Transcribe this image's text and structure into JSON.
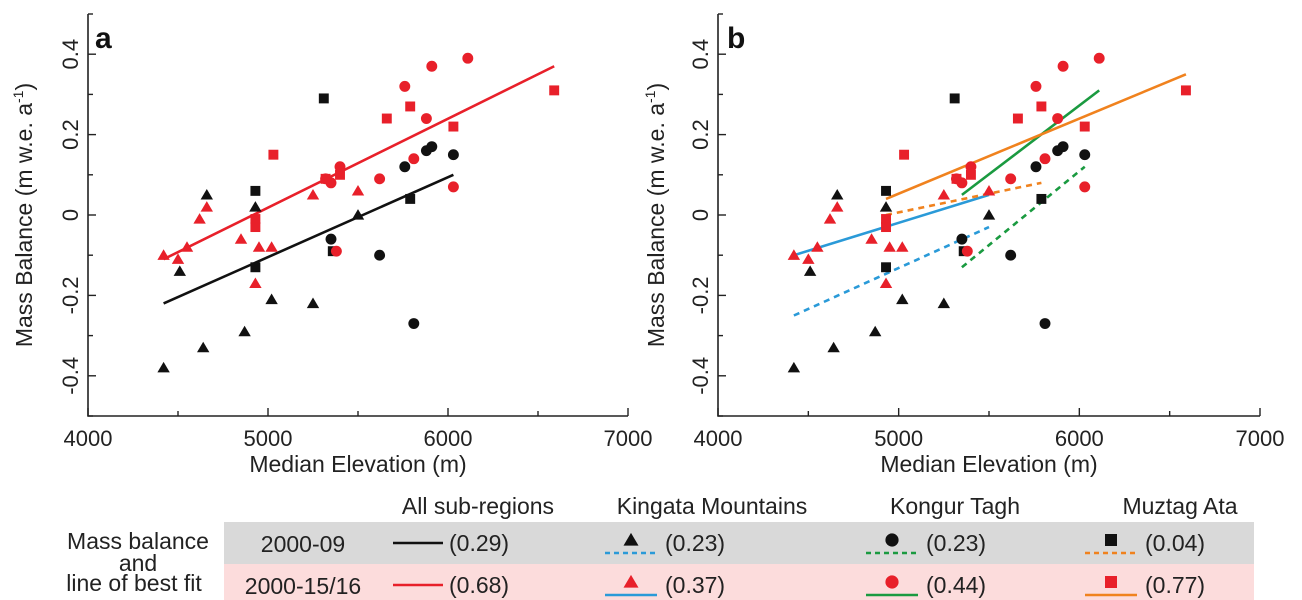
{
  "chart_data": [
    {
      "panel_label": "a",
      "type": "scatter",
      "xlabel": "Median Elevation (m)",
      "ylabel": "Mass Balance (m w.e. a",
      "ylabel_sup": "-1",
      "ylabel_close": ")",
      "xlim": [
        4000,
        7000
      ],
      "ylim": [
        -0.5,
        0.5
      ],
      "xticks": [
        4000,
        5000,
        6000,
        7000
      ],
      "yticks": [
        -0.4,
        -0.2,
        0,
        0.2,
        0.4
      ],
      "yticklabels": [
        "-0.4",
        "-0.2",
        "0",
        "0.2",
        "0.4"
      ],
      "series": [
        {
          "region": "Kingata Mountains",
          "period": "2000-09",
          "marker": "triangle",
          "color": "#111111",
          "points": [
            [
              4420,
              -0.38
            ],
            [
              4510,
              -0.14
            ],
            [
              4640,
              -0.33
            ],
            [
              4660,
              0.05
            ],
            [
              4870,
              -0.29
            ],
            [
              4930,
              0.02
            ],
            [
              5020,
              -0.21
            ],
            [
              5250,
              -0.22
            ],
            [
              5500,
              0.0
            ]
          ]
        },
        {
          "region": "Kongur Tagh",
          "period": "2000-09",
          "marker": "circle",
          "color": "#111111",
          "points": [
            [
              5350,
              -0.06
            ],
            [
              5620,
              -0.1
            ],
            [
              5760,
              0.12
            ],
            [
              5810,
              -0.27
            ],
            [
              5880,
              0.16
            ],
            [
              5910,
              0.17
            ],
            [
              6030,
              0.15
            ]
          ]
        },
        {
          "region": "Muztag Ata",
          "period": "2000-09",
          "marker": "square",
          "color": "#111111",
          "points": [
            [
              4930,
              0.06
            ],
            [
              4930,
              -0.13
            ],
            [
              5310,
              0.29
            ],
            [
              5360,
              -0.09
            ],
            [
              5790,
              0.04
            ]
          ]
        },
        {
          "region": "Kingata Mountains",
          "period": "2000-15/16",
          "marker": "triangle",
          "color": "#e8202a",
          "points": [
            [
              4420,
              -0.1
            ],
            [
              4500,
              -0.11
            ],
            [
              4550,
              -0.08
            ],
            [
              4620,
              -0.01
            ],
            [
              4660,
              0.02
            ],
            [
              4850,
              -0.06
            ],
            [
              4930,
              -0.17
            ],
            [
              4950,
              -0.08
            ],
            [
              5020,
              -0.08
            ],
            [
              5250,
              0.05
            ],
            [
              5500,
              0.06
            ]
          ]
        },
        {
          "region": "Kongur Tagh",
          "period": "2000-15/16",
          "marker": "circle",
          "color": "#e8202a",
          "points": [
            [
              5320,
              0.09
            ],
            [
              5350,
              0.08
            ],
            [
              5380,
              -0.09
            ],
            [
              5400,
              0.12
            ],
            [
              5620,
              0.09
            ],
            [
              5760,
              0.32
            ],
            [
              5810,
              0.14
            ],
            [
              5880,
              0.24
            ],
            [
              5910,
              0.37
            ],
            [
              6030,
              0.07
            ],
            [
              6110,
              0.39
            ]
          ]
        },
        {
          "region": "Muztag Ata",
          "period": "2000-15/16",
          "marker": "square",
          "color": "#e8202a",
          "points": [
            [
              4930,
              -0.01
            ],
            [
              4930,
              -0.03
            ],
            [
              5030,
              0.15
            ],
            [
              5320,
              0.09
            ],
            [
              5400,
              0.1
            ],
            [
              5660,
              0.24
            ],
            [
              5790,
              0.27
            ],
            [
              6030,
              0.22
            ],
            [
              6590,
              0.31
            ]
          ]
        }
      ],
      "fit_lines": [
        {
          "name": "All sub-regions 2000-09",
          "color": "#111111",
          "dash": false,
          "x": [
            4420,
            6030
          ],
          "y": [
            -0.22,
            0.1
          ]
        },
        {
          "name": "All sub-regions 2000-15/16",
          "color": "#e8202a",
          "dash": false,
          "x": [
            4420,
            6590
          ],
          "y": [
            -0.11,
            0.37
          ]
        }
      ]
    },
    {
      "panel_label": "b",
      "type": "scatter",
      "xlabel": "Median Elevation (m)",
      "ylabel": "Mass Balance (m w.e. a",
      "ylabel_sup": "-1",
      "ylabel_close": ")",
      "xlim": [
        4000,
        7000
      ],
      "ylim": [
        -0.5,
        0.5
      ],
      "xticks": [
        4000,
        5000,
        6000,
        7000
      ],
      "yticks": [
        -0.4,
        -0.2,
        0,
        0.2,
        0.4
      ],
      "yticklabels": [
        "-0.4",
        "-0.2",
        "0",
        "0.2",
        "0.4"
      ],
      "series": [
        {
          "region": "Kingata Mountains",
          "period": "2000-09",
          "marker": "triangle",
          "color": "#111111",
          "points": [
            [
              4420,
              -0.38
            ],
            [
              4510,
              -0.14
            ],
            [
              4640,
              -0.33
            ],
            [
              4660,
              0.05
            ],
            [
              4870,
              -0.29
            ],
            [
              4930,
              0.02
            ],
            [
              5020,
              -0.21
            ],
            [
              5250,
              -0.22
            ],
            [
              5500,
              0.0
            ]
          ]
        },
        {
          "region": "Kongur Tagh",
          "period": "2000-09",
          "marker": "circle",
          "color": "#111111",
          "points": [
            [
              5350,
              -0.06
            ],
            [
              5620,
              -0.1
            ],
            [
              5760,
              0.12
            ],
            [
              5810,
              -0.27
            ],
            [
              5880,
              0.16
            ],
            [
              5910,
              0.17
            ],
            [
              6030,
              0.15
            ]
          ]
        },
        {
          "region": "Muztag Ata",
          "period": "2000-09",
          "marker": "square",
          "color": "#111111",
          "points": [
            [
              4930,
              0.06
            ],
            [
              4930,
              -0.13
            ],
            [
              5310,
              0.29
            ],
            [
              5360,
              -0.09
            ],
            [
              5790,
              0.04
            ]
          ]
        },
        {
          "region": "Kingata Mountains",
          "period": "2000-15/16",
          "marker": "triangle",
          "color": "#e8202a",
          "points": [
            [
              4420,
              -0.1
            ],
            [
              4500,
              -0.11
            ],
            [
              4550,
              -0.08
            ],
            [
              4620,
              -0.01
            ],
            [
              4660,
              0.02
            ],
            [
              4850,
              -0.06
            ],
            [
              4930,
              -0.17
            ],
            [
              4950,
              -0.08
            ],
            [
              5020,
              -0.08
            ],
            [
              5250,
              0.05
            ],
            [
              5500,
              0.06
            ]
          ]
        },
        {
          "region": "Kongur Tagh",
          "period": "2000-15/16",
          "marker": "circle",
          "color": "#e8202a",
          "points": [
            [
              5320,
              0.09
            ],
            [
              5350,
              0.08
            ],
            [
              5380,
              -0.09
            ],
            [
              5400,
              0.12
            ],
            [
              5620,
              0.09
            ],
            [
              5760,
              0.32
            ],
            [
              5810,
              0.14
            ],
            [
              5880,
              0.24
            ],
            [
              5910,
              0.37
            ],
            [
              6030,
              0.07
            ],
            [
              6110,
              0.39
            ]
          ]
        },
        {
          "region": "Muztag Ata",
          "period": "2000-15/16",
          "marker": "square",
          "color": "#e8202a",
          "points": [
            [
              4930,
              -0.01
            ],
            [
              4930,
              -0.03
            ],
            [
              5030,
              0.15
            ],
            [
              5320,
              0.09
            ],
            [
              5400,
              0.1
            ],
            [
              5660,
              0.24
            ],
            [
              5790,
              0.27
            ],
            [
              6030,
              0.22
            ],
            [
              6590,
              0.31
            ]
          ]
        }
      ],
      "fit_lines": [
        {
          "name": "Kingata Mountains 2000-09",
          "color": "#2a9ad8",
          "dash": true,
          "x": [
            4420,
            5500
          ],
          "y": [
            -0.25,
            -0.03
          ]
        },
        {
          "name": "Kingata Mountains 2000-15/16",
          "color": "#2a9ad8",
          "dash": false,
          "x": [
            4420,
            5500
          ],
          "y": [
            -0.1,
            0.05
          ]
        },
        {
          "name": "Kongur Tagh 2000-09",
          "color": "#1a9a40",
          "dash": true,
          "x": [
            5350,
            6030
          ],
          "y": [
            -0.13,
            0.12
          ]
        },
        {
          "name": "Kongur Tagh 2000-15/16",
          "color": "#1a9a40",
          "dash": false,
          "x": [
            5350,
            6110
          ],
          "y": [
            0.05,
            0.31
          ]
        },
        {
          "name": "Muztag Ata 2000-09",
          "color": "#f0821e",
          "dash": true,
          "x": [
            4930,
            5790
          ],
          "y": [
            0.0,
            0.08
          ]
        },
        {
          "name": "Muztag Ata 2000-15/16",
          "color": "#f0821e",
          "dash": false,
          "x": [
            4930,
            6590
          ],
          "y": [
            0.04,
            0.35
          ]
        }
      ]
    }
  ],
  "legend": {
    "row_label_line1": "Mass balance",
    "row_label_line2": "and",
    "row_label_line3": "line of best fit",
    "headers": [
      "All sub-regions",
      "Kingata Mountains",
      "Kongur Tagh",
      "Muztag Ata"
    ],
    "rows": [
      {
        "period": "2000-09",
        "bg": "#d9d9d9",
        "entries": [
          {
            "marker": "none",
            "marker_color": "#111111",
            "line_color": "#111111",
            "dash": false,
            "value": "(0.29)"
          },
          {
            "marker": "triangle",
            "marker_color": "#111111",
            "line_color": "#2a9ad8",
            "dash": true,
            "value": "(0.23)"
          },
          {
            "marker": "circle",
            "marker_color": "#111111",
            "line_color": "#1a9a40",
            "dash": true,
            "value": "(0.23)"
          },
          {
            "marker": "square",
            "marker_color": "#111111",
            "line_color": "#f0821e",
            "dash": true,
            "value": "(0.04)"
          }
        ]
      },
      {
        "period": "2000-15/16",
        "bg": "#fcdcdc",
        "entries": [
          {
            "marker": "none",
            "marker_color": "#e8202a",
            "line_color": "#e8202a",
            "dash": false,
            "value": "(0.68)"
          },
          {
            "marker": "triangle",
            "marker_color": "#e8202a",
            "line_color": "#2a9ad8",
            "dash": false,
            "value": "(0.37)"
          },
          {
            "marker": "circle",
            "marker_color": "#e8202a",
            "line_color": "#1a9a40",
            "dash": false,
            "value": "(0.44)"
          },
          {
            "marker": "square",
            "marker_color": "#e8202a",
            "line_color": "#f0821e",
            "dash": false,
            "value": "(0.77)"
          }
        ]
      }
    ]
  }
}
